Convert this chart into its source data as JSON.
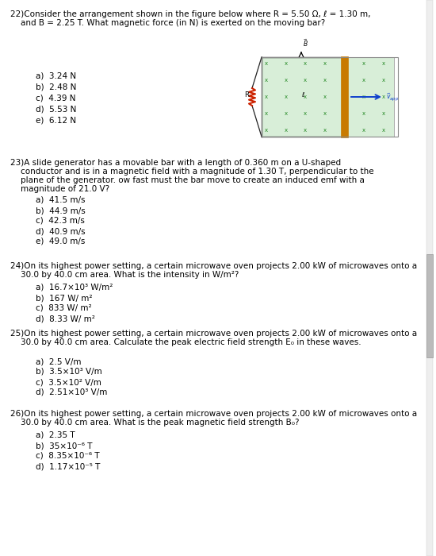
{
  "bg_color": "#ffffff",
  "text_color": "#000000",
  "q22_title_l1": "22)Consider the arrangement shown in the figure below where R = 5.50 Ω, ℓ = 1.30 m,",
  "q22_title_l2": "    and B = 2.25 T. What magnetic force (in N) is exerted on the moving bar?",
  "q22_answers": [
    "a)  3.24 N",
    "b)  2.48 N",
    "c)  4.39 N",
    "d)  5.53 N",
    "e)  6.12 N"
  ],
  "q23_title_l1": "23)A slide generator has a movable bar with a length of 0.360 m on a U-shaped",
  "q23_title_l2": "    conductor and is in a magnetic field with a magnitude of 1.30 T, perpendicular to the",
  "q23_title_l3": "    plane of the generator. ow fast must the bar move to create an induced emf with a",
  "q23_title_l4": "    magnitude of 21.0 V?",
  "q23_answers": [
    "a)  41.5 m/s",
    "b)  44.9 m/s",
    "c)  42.3 m/s",
    "d)  40.9 m/s",
    "e)  49.0 m/s"
  ],
  "q24_title_l1": "24)On its highest power setting, a certain microwave oven projects 2.00 kW of microwaves onto a",
  "q24_title_l2": "    30.0 by 40.0 cm area. What is the intensity in W/m²?",
  "q24_answers": [
    "a)  16.7×10³ W/m²",
    "b)  167 W/ m²",
    "c)  833 W/ m²",
    "d)  8.33 W/ m²"
  ],
  "q25_title_l1": "25)On its highest power setting, a certain microwave oven projects 2.00 kW of microwaves onto a",
  "q25_title_l2": "    30.0 by 40.0 cm area. Calculate the peak electric field strength E₀ in these waves.",
  "q25_answers": [
    "a)  2.5 V/m",
    "b)  3.5×10³ V/m",
    "c)  3.5×10² V/m",
    "d)  2.51×10³ V/m"
  ],
  "q26_title_l1": "26)On its highest power setting, a certain microwave oven projects 2.00 kW of microwaves onto a",
  "q26_title_l2": "    30.0 by 40.0 cm area. What is the peak magnetic field strength B₀?",
  "q26_answers": [
    "a)  2.35 T",
    "b)  35×10⁻⁶ T",
    "c)  8.35×10⁻⁶ T",
    "d)  1.17×10⁻⁵ T"
  ],
  "font_size": 7.5
}
